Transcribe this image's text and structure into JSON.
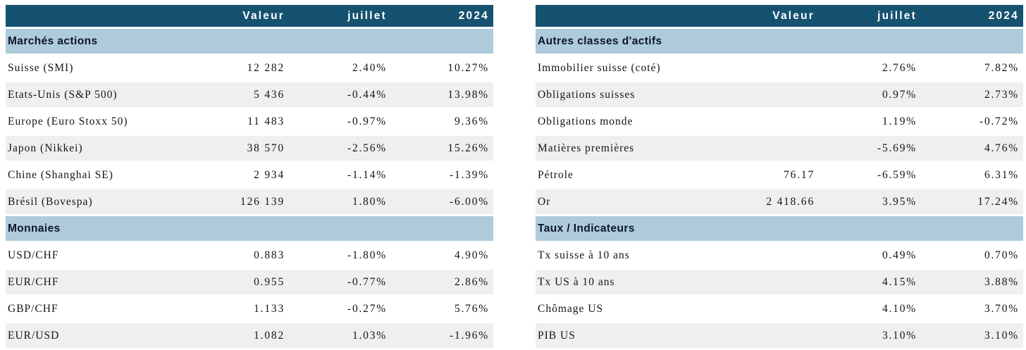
{
  "palette": {
    "header_bg": "#155270",
    "header_text": "#ffffff",
    "section_bg": "#aecbdc",
    "stripe_bg": "#efefef",
    "text": "#141414"
  },
  "tables": [
    {
      "columns": [
        "",
        "Valeur",
        "juillet",
        "2024"
      ],
      "sections": [
        {
          "title": "Marchés actions",
          "rows": [
            {
              "label": "Suisse (SMI)",
              "valeur": "12 282",
              "juillet": "2.40%",
              "y2024": "10.27%"
            },
            {
              "label": "Etats-Unis (S&P 500)",
              "valeur": "5 436",
              "juillet": "-0.44%",
              "y2024": "13.98%"
            },
            {
              "label": "Europe (Euro Stoxx 50)",
              "valeur": "11 483",
              "juillet": "-0.97%",
              "y2024": "9.36%"
            },
            {
              "label": "Japon (Nikkei)",
              "valeur": "38 570",
              "juillet": "-2.56%",
              "y2024": "15.26%"
            },
            {
              "label": "Chine (Shanghai SE)",
              "valeur": "2 934",
              "juillet": "-1.14%",
              "y2024": "-1.39%"
            },
            {
              "label": "Brésil (Bovespa)",
              "valeur": "126 139",
              "juillet": "1.80%",
              "y2024": "-6.00%"
            }
          ]
        },
        {
          "title": "Monnaies",
          "rows": [
            {
              "label": "USD/CHF",
              "valeur": "0.883",
              "juillet": "-1.80%",
              "y2024": "4.90%"
            },
            {
              "label": "EUR/CHF",
              "valeur": "0.955",
              "juillet": "-0.77%",
              "y2024": "2.86%"
            },
            {
              "label": "GBP/CHF",
              "valeur": "1.133",
              "juillet": "-0.27%",
              "y2024": "5.76%"
            },
            {
              "label": "EUR/USD",
              "valeur": "1.082",
              "juillet": "1.03%",
              "y2024": "-1.96%"
            }
          ]
        }
      ]
    },
    {
      "columns": [
        "",
        "Valeur",
        "juillet",
        "2024"
      ],
      "sections": [
        {
          "title": "Autres classes d'actifs",
          "rows": [
            {
              "label": "Immobilier suisse (coté)",
              "valeur": "",
              "juillet": "2.76%",
              "y2024": "7.82%"
            },
            {
              "label": "Obligations suisses",
              "valeur": "",
              "juillet": "0.97%",
              "y2024": "2.73%"
            },
            {
              "label": "Obligations monde",
              "valeur": "",
              "juillet": "1.19%",
              "y2024": "-0.72%"
            },
            {
              "label": "Matières premières",
              "valeur": "",
              "juillet": "-5.69%",
              "y2024": "4.76%"
            },
            {
              "label": "Pétrole",
              "valeur": "76.17",
              "juillet": "-6.59%",
              "y2024": "6.31%"
            },
            {
              "label": "Or",
              "valeur": "2 418.66",
              "juillet": "3.95%",
              "y2024": "17.24%"
            }
          ]
        },
        {
          "title": "Taux / Indicateurs",
          "rows": [
            {
              "label": "Tx suisse à 10 ans",
              "valeur": "",
              "juillet": "0.49%",
              "y2024": "0.70%"
            },
            {
              "label": "Tx US à 10 ans",
              "valeur": "",
              "juillet": "4.15%",
              "y2024": "3.88%"
            },
            {
              "label": "Chômage US",
              "valeur": "",
              "juillet": "4.10%",
              "y2024": "3.70%"
            },
            {
              "label": "PIB US",
              "valeur": "",
              "juillet": "3.10%",
              "y2024": "3.10%"
            }
          ]
        }
      ]
    }
  ]
}
